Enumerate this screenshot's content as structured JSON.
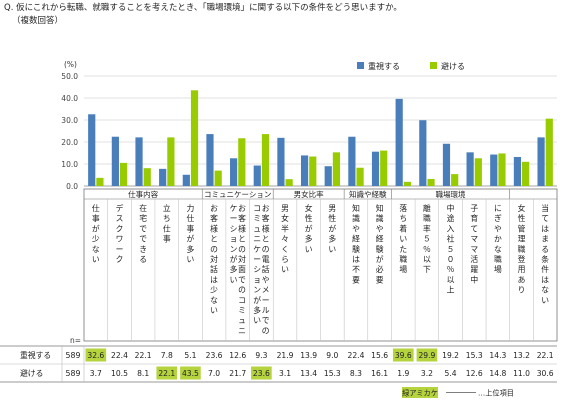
{
  "question": {
    "title": "Q. 仮にこれから転職、就職することを考えたとき、「職場環境」に関する以下の条件をどう思いますか。",
    "subtitle": "（複数回答）"
  },
  "chart_data": {
    "type": "bar",
    "unit_label": "(%)",
    "ylim": [
      0,
      50
    ],
    "yticks": [
      "0.0",
      "10.0",
      "20.0",
      "30.0",
      "40.0",
      "50.0"
    ],
    "grid": true,
    "legend_position": "top-right",
    "colors": {
      "series1": "#4a7ebb",
      "series2": "#99cc00",
      "highlight_green": "#b5d33d",
      "highlight_blue": "#7fa7d6"
    },
    "groups": [
      {
        "label": "仕事内容",
        "count": 5
      },
      {
        "label": "コミュニケーション",
        "count": 3
      },
      {
        "label": "男女比率",
        "count": 3
      },
      {
        "label": "知識や経験",
        "count": 2
      },
      {
        "label": "職場環境",
        "count": 5
      },
      {
        "label": "",
        "count": 1
      }
    ],
    "categories": [
      "仕事が少ない",
      "デスクワーク",
      "在宅でできる",
      "立ち仕事",
      "力仕事が多い",
      "お客様との対話は少ない",
      "お客様との対面でのコミュニケーションが多い",
      "お客様との電話やメールでのコミュニケーションが多い",
      "男女半々くらい",
      "女性が多い",
      "男性が多い",
      "知識や経験は不要",
      "知識や経験が必要",
      "落ち着いた職場",
      "離職率５％以下",
      "中途入社５０％以上",
      "子育てママ活躍中",
      "にぎやかな職場",
      "女性管理職登用あり",
      "当てはまる条件はない"
    ],
    "series": [
      {
        "name": "重視する",
        "values": [
          32.6,
          22.4,
          22.1,
          7.8,
          5.1,
          23.6,
          12.6,
          9.3,
          21.9,
          13.9,
          9.0,
          22.4,
          15.6,
          39.6,
          29.9,
          19.2,
          15.3,
          14.3,
          13.2,
          22.1
        ]
      },
      {
        "name": "避ける",
        "values": [
          3.7,
          10.5,
          8.1,
          22.1,
          43.5,
          7.0,
          21.7,
          23.6,
          3.1,
          13.4,
          15.3,
          8.3,
          16.1,
          1.9,
          3.2,
          5.4,
          12.6,
          14.8,
          11.0,
          30.6
        ]
      }
    ],
    "highlights": [
      {
        "series": 0,
        "indices": [
          0,
          13,
          14
        ]
      },
      {
        "series": 1,
        "indices": [
          3,
          4,
          7
        ]
      }
    ],
    "table": {
      "n_label": "n=",
      "n_values": [
        "589",
        "589"
      ]
    },
    "footer_legend": {
      "box_label": "緑アミカケ",
      "line_label": "…上位項目"
    }
  }
}
